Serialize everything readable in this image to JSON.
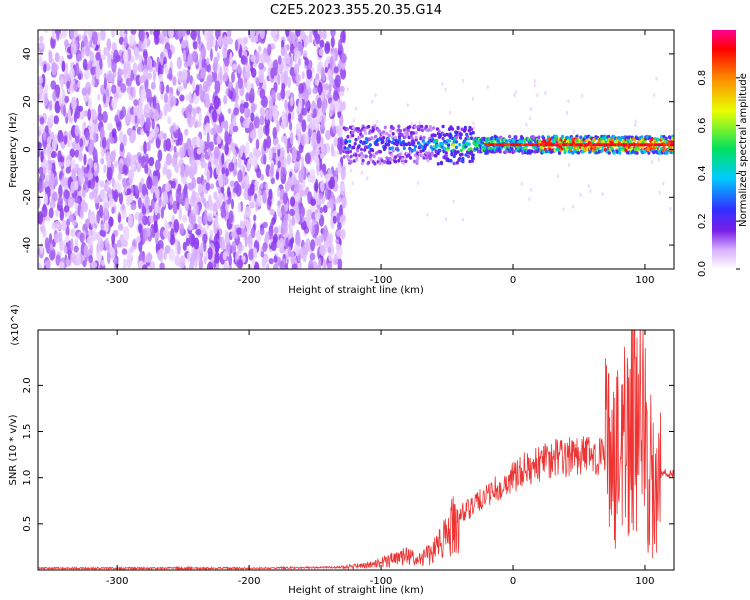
{
  "figure_title": "C2E5.2023.355.20.35.G14",
  "chart_data": [
    {
      "type": "heatmap",
      "title": "C2E5.2023.355.20.35.G14",
      "xlabel": "Height of straight line (km)",
      "ylabel": "Frequency (Hz)",
      "xlim": [
        -360,
        122
      ],
      "ylim": [
        -50,
        50
      ],
      "x_ticks": [
        -300,
        -200,
        -100,
        0,
        100
      ],
      "y_ticks": [
        -40,
        -20,
        0,
        20,
        40
      ],
      "grid": false,
      "colorbar": {
        "label": "Normalized spectral amplitude",
        "range": [
          0,
          1
        ],
        "ticks": [
          0.0,
          0.2,
          0.4,
          0.6,
          0.8
        ],
        "colormap": [
          "#ffffff",
          "#d9b0ff",
          "#7a1fe8",
          "#3030ff",
          "#00ccff",
          "#00e060",
          "#e8ff00",
          "#ff8800",
          "#ff0000",
          "#ff0090"
        ]
      },
      "features": {
        "noise_region_x": [
          -360,
          -128
        ],
        "signal_line_frequency_hz": 2,
        "signal_band_hz": [
          -5,
          8
        ],
        "peak_amplitude": 0.95
      }
    },
    {
      "type": "line",
      "xlabel": "Height of straight line (km)",
      "ylabel": "SNR (10 * v/v)",
      "y_multiplier": "(x10^4)",
      "xlim": [
        -360,
        122
      ],
      "ylim": [
        0,
        2.6
      ],
      "x_ticks": [
        -300,
        -200,
        -100,
        0,
        100
      ],
      "y_ticks": [
        0.5,
        1.0,
        1.5,
        2.0
      ],
      "grid": false,
      "color": "#ee3333",
      "series": [
        {
          "x": [
            -360,
            -300,
            -200,
            -130,
            -110,
            -100,
            -90,
            -80,
            -70,
            -60,
            -50,
            -40,
            -30,
            -20,
            -10,
            0,
            10,
            20,
            30,
            40,
            50,
            60,
            70,
            75,
            80,
            85,
            90,
            95,
            100,
            105,
            110,
            115,
            120
          ],
          "values": [
            0.02,
            0.02,
            0.02,
            0.03,
            0.05,
            0.08,
            0.12,
            0.15,
            0.12,
            0.2,
            0.4,
            0.6,
            0.7,
            0.8,
            0.9,
            1.0,
            1.1,
            1.15,
            1.2,
            1.22,
            1.25,
            1.25,
            1.22,
            1.1,
            1.15,
            1.5,
            1.6,
            1.4,
            1.5,
            1.1,
            1.0,
            1.05,
            1.03
          ]
        }
      ]
    }
  ]
}
